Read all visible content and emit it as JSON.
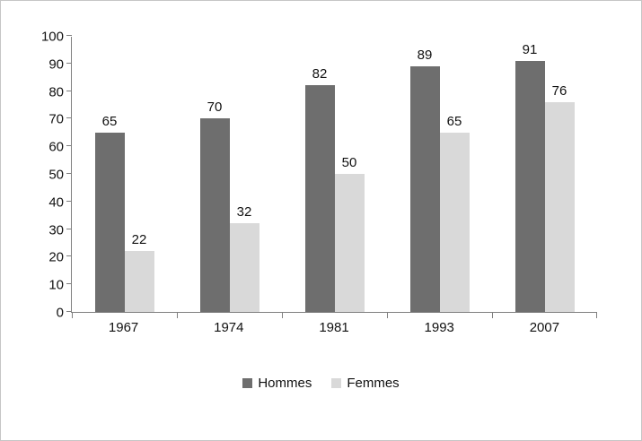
{
  "chart_data": {
    "type": "bar",
    "title": "",
    "xlabel": "",
    "ylabel": "",
    "categories": [
      "1967",
      "1974",
      "1981",
      "1993",
      "2007"
    ],
    "series": [
      {
        "name": "Hommes",
        "color": "#6e6e6e",
        "values": [
          65,
          70,
          82,
          89,
          91
        ]
      },
      {
        "name": "Femmes",
        "color": "#d9d9d9",
        "values": [
          22,
          32,
          50,
          65,
          76
        ]
      }
    ],
    "ylim": [
      0,
      100
    ],
    "yticks": [
      0,
      10,
      20,
      30,
      40,
      50,
      60,
      70,
      80,
      90,
      100
    ],
    "grid": false,
    "value_labels": true,
    "legend_position": "bottom"
  },
  "colors": {
    "axis": "#7f7f7f",
    "frame_border": "#c6c6c6",
    "hommes": "#6e6e6e",
    "femmes": "#d9d9d9"
  }
}
